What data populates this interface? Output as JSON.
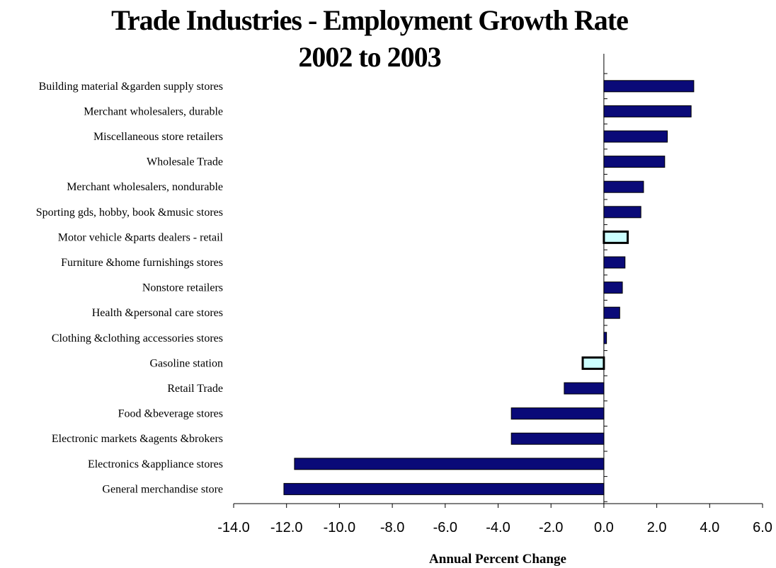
{
  "chart_data": {
    "type": "bar",
    "orientation": "horizontal",
    "title": "Trade Industries - Employment Growth Rate",
    "subtitle": "2002 to 2003",
    "xlabel": "Annual Percent Change",
    "ylabel": "",
    "xlim": [
      -14.0,
      6.0
    ],
    "x_ticks": [
      "-14.0",
      "-12.0",
      "-10.0",
      "-8.0",
      "-6.0",
      "-4.0",
      "-2.0",
      "0.0",
      "2.0",
      "4.0",
      "6.0"
    ],
    "grid": false,
    "legend": "none",
    "categories": [
      "Building material &garden supply stores",
      "Merchant wholesalers, durable",
      "Miscellaneous store retailers",
      "Wholesale Trade",
      "Merchant wholesalers, nondurable",
      "Sporting gds, hobby, book &music stores",
      "Motor vehicle &parts dealers - retail",
      "Furniture &home furnishings stores",
      "Nonstore retailers",
      "Health &personal care stores",
      "Clothing &clothing accessories stores",
      "Gasoline station",
      "Retail Trade",
      "Food &beverage stores",
      "Electronic markets &agents &brokers",
      "Electronics &appliance stores",
      "General merchandise store"
    ],
    "values": [
      3.4,
      3.3,
      2.4,
      2.3,
      1.5,
      1.4,
      0.9,
      0.8,
      0.7,
      0.6,
      0.1,
      -0.8,
      -1.5,
      -3.5,
      -3.5,
      -11.7,
      -12.1
    ],
    "highlighted": [
      "Motor vehicle &parts dealers - retail",
      "Gasoline station"
    ],
    "colors": {
      "bar": "#0a0a78",
      "highlight": "#ccffff",
      "outline": "#000000"
    }
  }
}
